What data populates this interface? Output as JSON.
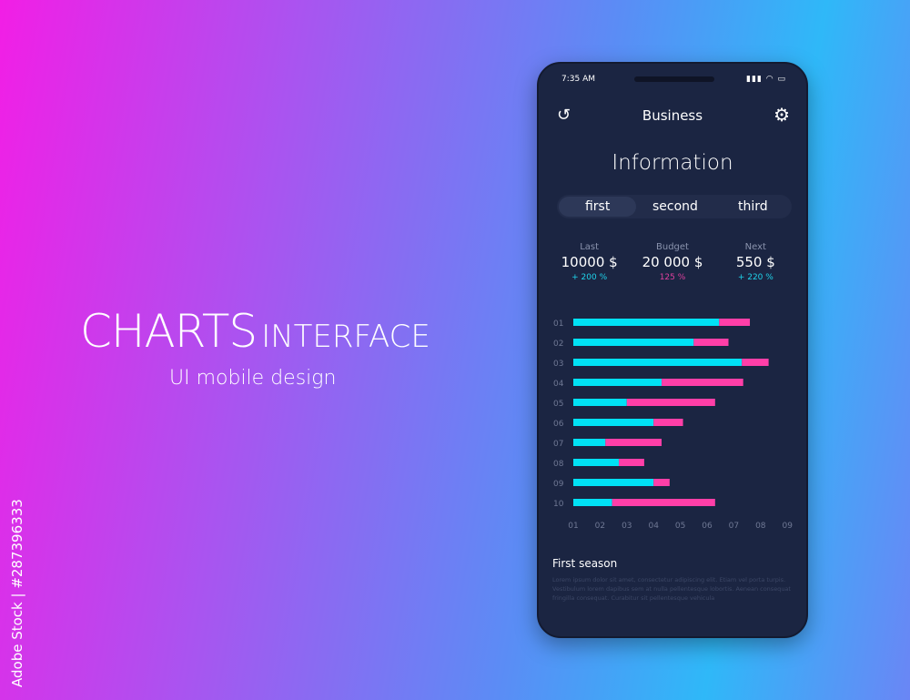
{
  "hero": {
    "title_big": "CHARTS",
    "title_small": "INTERFACE",
    "subtitle": "UI mobile design"
  },
  "watermark_side": "Adobe Stock | #287396333",
  "phone": {
    "status": {
      "time": "7:35 AM",
      "icons": [
        "signal-icon",
        "wifi-icon",
        "battery-icon"
      ]
    },
    "header": {
      "title": "Business",
      "left_icon": "history-icon",
      "right_icon": "gear-icon"
    },
    "page_title": "Information",
    "tabs": [
      {
        "label": "first",
        "active": true
      },
      {
        "label": "second",
        "active": false
      },
      {
        "label": "third",
        "active": false
      }
    ],
    "stats": [
      {
        "label": "Last",
        "value": "10000 $",
        "change": "+ 200 %",
        "color": "#1fd3ea"
      },
      {
        "label": "Budget",
        "value": "20 000 $",
        "change": "125 %",
        "color": "#e0409e"
      },
      {
        "label": "Next",
        "value": "550 $",
        "change": "+ 220 %",
        "color": "#1fd3ea"
      }
    ],
    "section_title": "First season",
    "body_text": "Lorem ipsum dolor sit amet, consectetur adipiscing elit. Etiam vel porta turpis. Vestibulum lorem dapibus sem at nulla pellentesque lobortis. Aenean consequat fringilla consequat. Curabitur sit pellentesque vehicula"
  },
  "chart_data": {
    "type": "bar",
    "orientation": "horizontal",
    "stacked": true,
    "categories": [
      "01",
      "02",
      "03",
      "04",
      "05",
      "06",
      "07",
      "08",
      "09",
      "10"
    ],
    "x_ticks": [
      "01",
      "02",
      "03",
      "04",
      "05",
      "06",
      "07",
      "08",
      "09"
    ],
    "xlim": [
      1,
      9
    ],
    "bar_start": 1,
    "series": [
      {
        "color": "#00e1f5",
        "end": [
          6.45,
          5.5,
          7.3,
          4.3,
          3.0,
          4.0,
          2.2,
          2.7,
          4.0,
          2.45
        ]
      },
      {
        "color": "#ff3fa8",
        "end": [
          7.6,
          6.8,
          8.3,
          7.35,
          6.3,
          5.1,
          4.3,
          3.65,
          4.6,
          6.3
        ]
      }
    ],
    "grid": false
  }
}
